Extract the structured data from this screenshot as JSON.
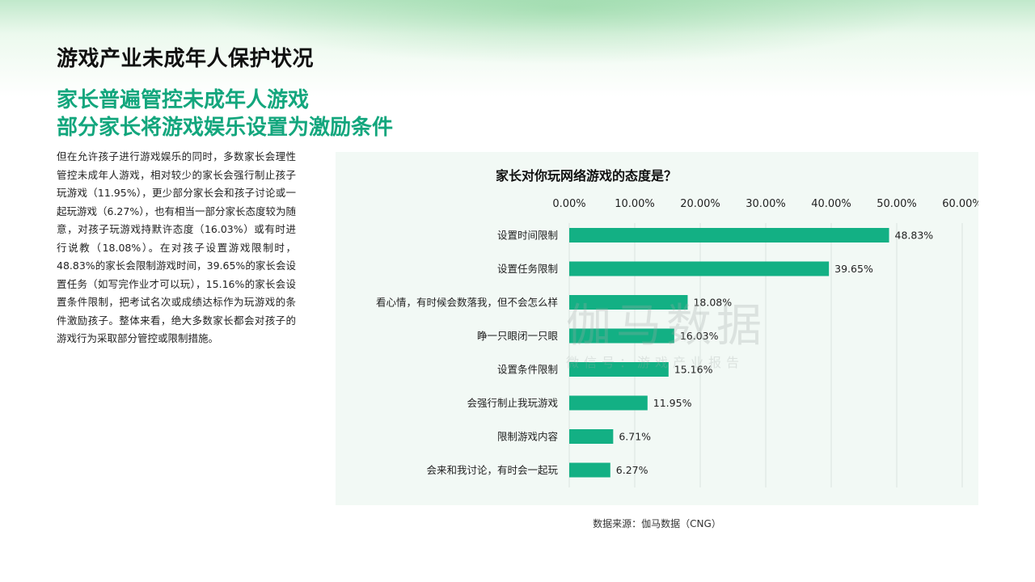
{
  "page": {
    "title": "游戏产业未成年人保护状况",
    "headline_line1": "家长普遍管控未成年人游戏",
    "headline_line2": "部分家长将游戏娱乐设置为激励条件",
    "body": "但在允许孩子进行游戏娱乐的同时，多数家长会理性管控未成年人游戏，相对较少的家长会强行制止孩子玩游戏（11.95%），更少部分家长会和孩子讨论或一起玩游戏（6.27%），也有相当一部分家长态度较为随意，对孩子玩游戏持默许态度（16.03%）或有时进行说教（18.08%）。在对孩子设置游戏限制时，48.83%的家长会限制游戏时间，39.65%的家长会设置任务（如写完作业才可以玩），15.16%的家长会设置条件限制，把考试名次或成绩达标作为玩游戏的条件激励孩子。整体来看，绝大多数家长都会对孩子的游戏行为采取部分管控或限制措施。",
    "source": "数据来源：伽马数据（CNG）",
    "watermark_main": "伽马数据",
    "watermark_sub": "微信号：游戏产业报告"
  },
  "colors": {
    "accent": "#13a67d",
    "bar": "#13b084",
    "panel": "#f2f9f5"
  },
  "chart_data": {
    "type": "bar",
    "orientation": "horizontal",
    "title": "家长对你玩网络游戏的态度是？",
    "categories": [
      "设置时间限制",
      "设置任务限制",
      "看心情，有时候会数落我，但不会怎么样",
      "睁一只眼闭一只眼",
      "设置条件限制",
      "会强行制止我玩游戏",
      "限制游戏内容",
      "会来和我讨论，有时会一起玩"
    ],
    "values": [
      48.83,
      39.65,
      18.08,
      16.03,
      15.16,
      11.95,
      6.71,
      6.27
    ],
    "value_labels": [
      "48.83%",
      "39.65%",
      "18.08%",
      "16.03%",
      "15.16%",
      "11.95%",
      "6.71%",
      "6.27%"
    ],
    "xlim": [
      0,
      60
    ],
    "xticks": [
      "0.00%",
      "10.00%",
      "20.00%",
      "30.00%",
      "40.00%",
      "50.00%",
      "60.00%"
    ],
    "axis_position": "top",
    "grid": true,
    "legend": "none"
  }
}
